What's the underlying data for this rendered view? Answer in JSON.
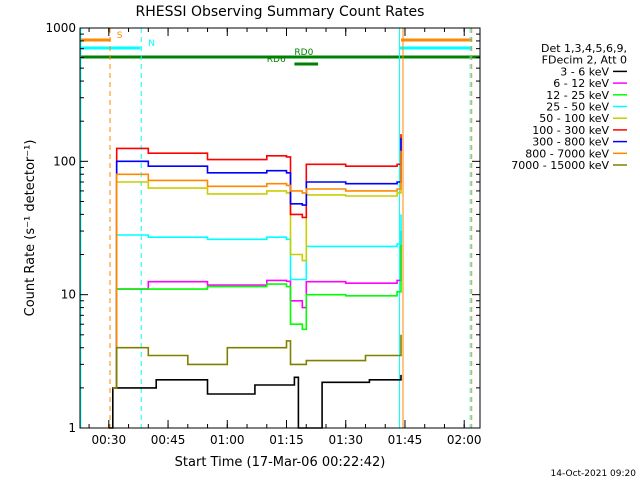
{
  "chart_data": {
    "type": "line",
    "title": "RHESSI Observing Summary Count Rates",
    "xlabel": "Start Time (17-Mar-06 00:22:42)",
    "ylabel": "Count Rate (s⁻¹ detector⁻¹)",
    "yscale": "log",
    "ylim": [
      1,
      1000
    ],
    "xlim_minutes": [
      22.7,
      124.0
    ],
    "x_ticks": [
      {
        "m": 30,
        "label": "00:30"
      },
      {
        "m": 45,
        "label": "00:45"
      },
      {
        "m": 60,
        "label": "01:00"
      },
      {
        "m": 75,
        "label": "01:15"
      },
      {
        "m": 90,
        "label": "01:30"
      },
      {
        "m": 105,
        "label": "01:45"
      },
      {
        "m": 120,
        "label": "02:00"
      }
    ],
    "y_ticks": [
      {
        "v": 1,
        "label": "1"
      },
      {
        "v": 10,
        "label": "10"
      },
      {
        "v": 100,
        "label": "100"
      },
      {
        "v": 1000,
        "label": "1000"
      }
    ],
    "legend_header": [
      "Det 1,3,4,5,6,9,",
      "FDecim 2, Att 0"
    ],
    "legend_position": "right",
    "series": [
      {
        "name": "3 - 6 keV",
        "color": "#000000",
        "points": [
          [
            30,
            1
          ],
          [
            31,
            2
          ],
          [
            42,
            2.3
          ],
          [
            55,
            1.8
          ],
          [
            67,
            2.1
          ],
          [
            77,
            2.4
          ],
          [
            78,
            1
          ],
          [
            83,
            1
          ],
          [
            84,
            2.2
          ],
          [
            96,
            2.3
          ],
          [
            104,
            2.5
          ]
        ]
      },
      {
        "name": "6 - 12 keV",
        "color": "#ff00ff",
        "points": [
          [
            31,
            2
          ],
          [
            32,
            11
          ],
          [
            40,
            12.5
          ],
          [
            55,
            11.8
          ],
          [
            70,
            12.8
          ],
          [
            75,
            12.6
          ],
          [
            76,
            9
          ],
          [
            79,
            8
          ],
          [
            80,
            12.5
          ],
          [
            90,
            12.2
          ],
          [
            103,
            12.8
          ],
          [
            104,
            30
          ]
        ]
      },
      {
        "name": "12 - 25 keV",
        "color": "#00ff00",
        "points": [
          [
            31,
            2
          ],
          [
            32,
            11
          ],
          [
            40,
            11
          ],
          [
            55,
            11.5
          ],
          [
            70,
            12
          ],
          [
            75,
            11.5
          ],
          [
            76,
            6
          ],
          [
            79,
            5.5
          ],
          [
            80,
            10
          ],
          [
            90,
            9.8
          ],
          [
            103,
            10.5
          ],
          [
            104,
            30
          ]
        ]
      },
      {
        "name": "25 - 50 keV",
        "color": "#00ffff",
        "points": [
          [
            31,
            2
          ],
          [
            32,
            28
          ],
          [
            40,
            27
          ],
          [
            55,
            26
          ],
          [
            70,
            27
          ],
          [
            75,
            26
          ],
          [
            76,
            13
          ],
          [
            79,
            13
          ],
          [
            80,
            23
          ],
          [
            90,
            23
          ],
          [
            103,
            24
          ],
          [
            104,
            40
          ]
        ]
      },
      {
        "name": "50 - 100 keV",
        "color": "#cccc00",
        "points": [
          [
            31,
            2
          ],
          [
            32,
            70
          ],
          [
            40,
            63
          ],
          [
            55,
            57
          ],
          [
            70,
            60
          ],
          [
            75,
            58
          ],
          [
            76,
            20
          ],
          [
            79,
            18
          ],
          [
            80,
            56
          ],
          [
            90,
            55
          ],
          [
            103,
            58
          ],
          [
            104,
            120
          ]
        ]
      },
      {
        "name": "100 - 300 keV",
        "color": "#ff0000",
        "points": [
          [
            31,
            2
          ],
          [
            32,
            125
          ],
          [
            40,
            115
          ],
          [
            55,
            103
          ],
          [
            70,
            110
          ],
          [
            75,
            108
          ],
          [
            76,
            40
          ],
          [
            79,
            38
          ],
          [
            80,
            95
          ],
          [
            90,
            92
          ],
          [
            103,
            95
          ],
          [
            104,
            160
          ]
        ]
      },
      {
        "name": "300 - 800 keV",
        "color": "#0000ff",
        "points": [
          [
            31,
            2
          ],
          [
            32,
            100
          ],
          [
            40,
            92
          ],
          [
            55,
            82
          ],
          [
            70,
            85
          ],
          [
            75,
            82
          ],
          [
            76,
            48
          ],
          [
            79,
            47
          ],
          [
            80,
            70
          ],
          [
            90,
            68
          ],
          [
            103,
            70
          ],
          [
            104,
            150
          ]
        ]
      },
      {
        "name": "800 - 7000 keV",
        "color": "#ff8800",
        "points": [
          [
            31,
            2
          ],
          [
            32,
            80
          ],
          [
            40,
            72
          ],
          [
            55,
            65
          ],
          [
            70,
            68
          ],
          [
            75,
            66
          ],
          [
            76,
            60
          ],
          [
            79,
            58
          ],
          [
            80,
            62
          ],
          [
            90,
            60
          ],
          [
            103,
            62
          ],
          [
            104,
            120
          ]
        ]
      },
      {
        "name": "7000 - 15000 keV",
        "color": "#808000",
        "points": [
          [
            31,
            2
          ],
          [
            32,
            4
          ],
          [
            40,
            3.5
          ],
          [
            50,
            3
          ],
          [
            60,
            4
          ],
          [
            75,
            4.5
          ],
          [
            76,
            3
          ],
          [
            79,
            3
          ],
          [
            80,
            3.2
          ],
          [
            95,
            3.5
          ],
          [
            104,
            5
          ]
        ]
      }
    ],
    "flags": [
      {
        "label": "S",
        "color": "#ff8800",
        "level": 1,
        "segments": [
          [
            22.7,
            30.5
          ],
          [
            104,
            122
          ]
        ],
        "label_at": 32
      },
      {
        "label": "N",
        "color": "#00ffff",
        "level": 2,
        "segments": [
          [
            22.7,
            38
          ],
          [
            103.5,
            122
          ]
        ],
        "label_at": 40
      },
      {
        "label": "RD0",
        "color": "#008000",
        "level": 3,
        "segments": [
          [
            22.7,
            124
          ]
        ],
        "label_at": 77
      },
      {
        "label": "RD6",
        "color": "#008000",
        "level": 4,
        "segments": [
          [
            77,
            83
          ]
        ],
        "label_at": 70
      }
    ],
    "vlines": [
      {
        "m": 30.3,
        "color": "#ff8800",
        "dash": true
      },
      {
        "m": 38.2,
        "color": "#00ffff",
        "dash": true
      },
      {
        "m": 22.9,
        "color": "#00ffff",
        "dash": false
      },
      {
        "m": 103.6,
        "color": "#00ffff",
        "dash": false
      },
      {
        "m": 104.5,
        "color": "#ff8800",
        "dash": false
      },
      {
        "m": 121.5,
        "color": "#00ffff",
        "dash": true
      },
      {
        "m": 121.9,
        "color": "#ff8800",
        "dash": true
      }
    ]
  },
  "footer_date": "14-Oct-2021 09:20"
}
